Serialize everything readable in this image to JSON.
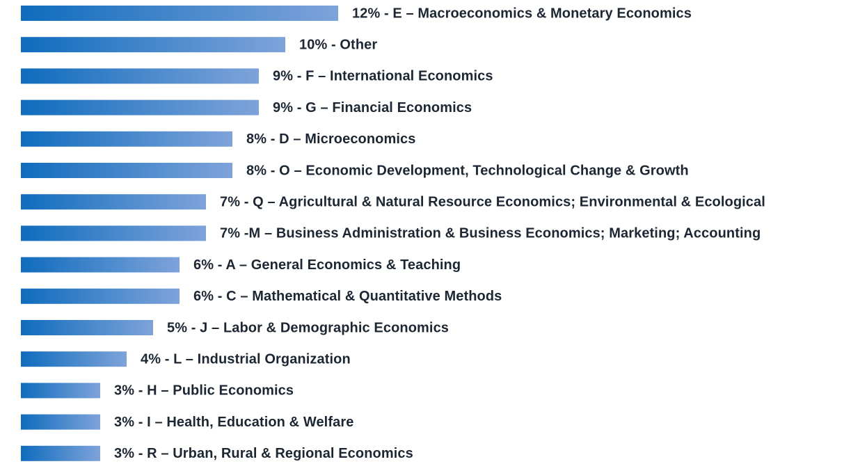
{
  "chart_data": {
    "type": "bar",
    "orientation": "horizontal",
    "values": [
      12,
      10,
      9,
      9,
      8,
      8,
      7,
      7,
      6,
      6,
      5,
      4,
      3,
      3,
      3
    ],
    "value_labels": [
      "12% - E – Macroeconomics & Monetary Economics",
      "10% - Other",
      "9% - F – International Economics",
      "9% - G – Financial Economics",
      "8% - D – Microeconomics",
      "8% - O – Economic Development, Technological Change & Growth",
      "7% - Q – Agricultural & Natural Resource Economics; Environmental & Ecological",
      "7% -M – Business Administration & Business Economics; Marketing; Accounting",
      "6% - A – General Economics & Teaching",
      "6% - C – Mathematical & Quantitative Methods",
      "5% - J – Labor & Demographic Economics",
      "4% - L – Industrial Organization",
      "3% - H – Public Economics",
      "3% - I – Health, Education & Welfare",
      "3% - R – Urban, Rural & Regional Economics"
    ],
    "color": [
      "#0f6cbd",
      "#7ea3da"
    ],
    "xlim": [
      0,
      12
    ]
  }
}
